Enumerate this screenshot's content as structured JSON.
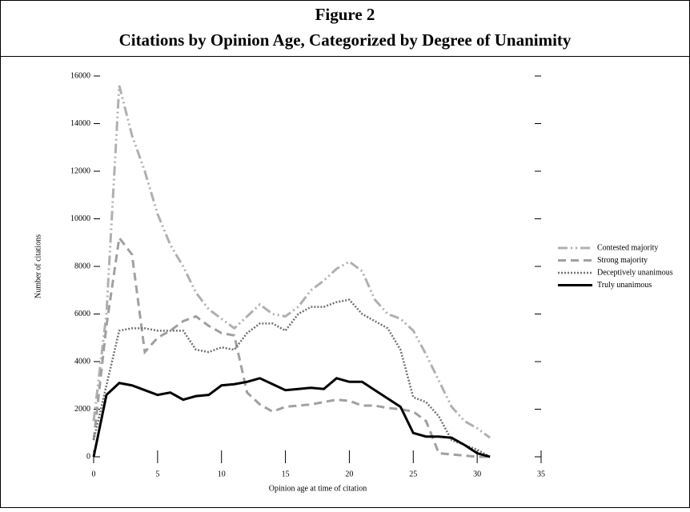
{
  "chart_data": {
    "type": "line",
    "title": "Figure 2",
    "subtitle": "Citations by Opinion Age, Categorized by Degree of Unanimity",
    "x_label": "Opinion age at time of citation",
    "y_label": "Number of citations",
    "x": [
      0,
      1,
      2,
      3,
      4,
      5,
      6,
      7,
      8,
      9,
      10,
      11,
      12,
      13,
      14,
      15,
      16,
      17,
      18,
      19,
      20,
      21,
      22,
      23,
      24,
      25,
      26,
      27,
      28,
      29,
      30,
      31
    ],
    "series": [
      {
        "name": "Contested majority",
        "color": "#b0b0b0",
        "line_style": "dash-dot-dot",
        "values": [
          1500,
          6000,
          15600,
          13500,
          12000,
          10200,
          8900,
          8000,
          6900,
          6200,
          5800,
          5400,
          5900,
          6400,
          6000,
          5900,
          6300,
          7000,
          7400,
          7900,
          8200,
          7800,
          6600,
          6000,
          5800,
          5300,
          4300,
          3200,
          2100,
          1500,
          1200,
          800
        ]
      },
      {
        "name": "Strong majority",
        "color": "#a0a0a0",
        "line_style": "dashed",
        "values": [
          700,
          5500,
          9200,
          8500,
          4400,
          5000,
          5300,
          5700,
          5900,
          5500,
          5200,
          5100,
          2700,
          2200,
          1900,
          2100,
          2150,
          2200,
          2300,
          2400,
          2350,
          2150,
          2150,
          2050,
          2000,
          1900,
          1500,
          150,
          100,
          50,
          0,
          0
        ]
      },
      {
        "name": "Deceptively unanimous",
        "color": "#707070",
        "line_style": "dotted",
        "values": [
          700,
          3000,
          5300,
          5400,
          5400,
          5300,
          5300,
          5300,
          4500,
          4400,
          4600,
          4500,
          5200,
          5600,
          5600,
          5300,
          6000,
          6300,
          6300,
          6500,
          6600,
          6000,
          5700,
          5400,
          4500,
          2500,
          2300,
          1700,
          700,
          500,
          300,
          0
        ]
      },
      {
        "name": "Truly unanimous",
        "color": "#000000",
        "line_style": "solid",
        "values": [
          0,
          2600,
          3100,
          3000,
          2800,
          2600,
          2700,
          2400,
          2550,
          2600,
          3000,
          3050,
          3150,
          3300,
          3050,
          2800,
          2850,
          2900,
          2850,
          3300,
          3150,
          3150,
          2800,
          2450,
          2100,
          1000,
          850,
          850,
          800,
          500,
          150,
          0
        ]
      }
    ],
    "xlim": [
      0,
      35
    ],
    "xticks": [
      0,
      5,
      10,
      15,
      20,
      25,
      30,
      35
    ],
    "ylim": [
      0,
      16000
    ],
    "yticks": [
      0,
      2000,
      4000,
      6000,
      8000,
      10000,
      12000,
      14000,
      16000
    ],
    "legend": "right"
  }
}
